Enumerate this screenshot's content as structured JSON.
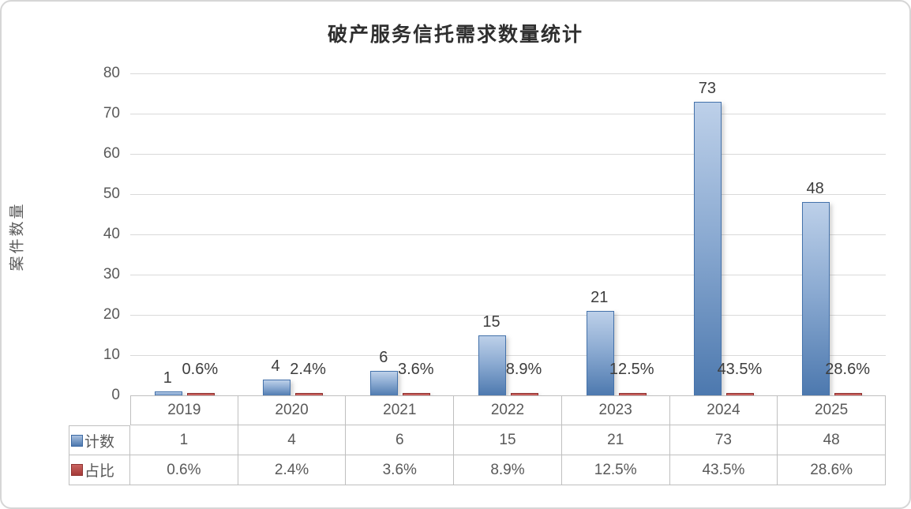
{
  "chart_data": {
    "type": "bar",
    "title": "破产服务信托需求数量统计",
    "ylabel": "案件数量",
    "xlabel": "",
    "categories": [
      "2019",
      "2020",
      "2021",
      "2022",
      "2023",
      "2024",
      "2025"
    ],
    "series": [
      {
        "name": "计数",
        "values": [
          1,
          4,
          6,
          15,
          21,
          73,
          48
        ],
        "labels": [
          "1",
          "4",
          "6",
          "15",
          "21",
          "73",
          "48"
        ],
        "color": "#4c78ae"
      },
      {
        "name": "占比",
        "values": [
          0.6,
          2.4,
          3.6,
          8.9,
          12.5,
          43.5,
          28.6
        ],
        "labels": [
          "0.6%",
          "2.4%",
          "3.6%",
          "8.9%",
          "12.5%",
          "43.5%",
          "28.6%"
        ],
        "color": "#b04341"
      }
    ],
    "ylim": [
      0,
      80
    ],
    "yticks": [
      0,
      10,
      20,
      30,
      40,
      50,
      60,
      70,
      80
    ],
    "grid": true,
    "legend_position": "data-table-left",
    "colors": {
      "bar_blue_top": "#bdd0e9",
      "bar_blue_bottom": "#4c78ae",
      "bar_blue_border": "#4472ab",
      "bar_red": "#b04341",
      "bar_red_border": "#8f3230",
      "gridline": "#d9d9d9",
      "axis_text": "#595959",
      "data_label_text": "#3d3d3d",
      "table_border": "#bfbfbf",
      "title_text": "#2f2f2f"
    }
  }
}
